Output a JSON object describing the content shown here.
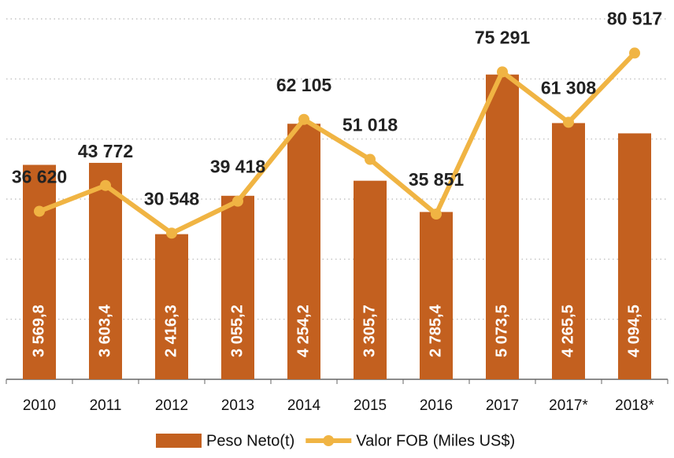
{
  "chart_data": {
    "type": "bar_line",
    "categories": [
      "2010",
      "2011",
      "2012",
      "2013",
      "2014",
      "2015",
      "2016",
      "2017",
      "2017*",
      "2018*"
    ],
    "series": [
      {
        "name": "Peso Neto(t)",
        "color": "#c3601f",
        "type": "bar",
        "values": [
          3569.8,
          3603.4,
          2416.3,
          3055.2,
          4254.2,
          3305.7,
          2785.4,
          5073.5,
          4265.5,
          4094.5
        ],
        "value_labels": [
          "3 569,8",
          "3 603,4",
          "2 416,3",
          "3 055,2",
          "4 254,2",
          "3 305,7",
          "2 785,4",
          "5 073,5",
          "4 265,5",
          "4 094,5"
        ]
      },
      {
        "name": "Valor FOB (Miles US$)",
        "color": "#f0b443",
        "type": "line",
        "axis": "y2",
        "values": [
          36620,
          43772,
          30548,
          39418,
          62105,
          51018,
          35851,
          75291,
          61308,
          80517
        ],
        "value_labels": [
          "36 620",
          "43 772",
          "30 548",
          "39 418",
          "62 105",
          "51 018",
          "35 851",
          "75 291",
          "61 308",
          "80 517"
        ]
      }
    ],
    "ylim": [
      0,
      6000
    ],
    "yticks": [
      1000,
      2000,
      3000,
      4000,
      5000,
      6000
    ],
    "y2lim": [
      -10000,
      90000
    ],
    "grid": true,
    "legend": "bottom"
  }
}
